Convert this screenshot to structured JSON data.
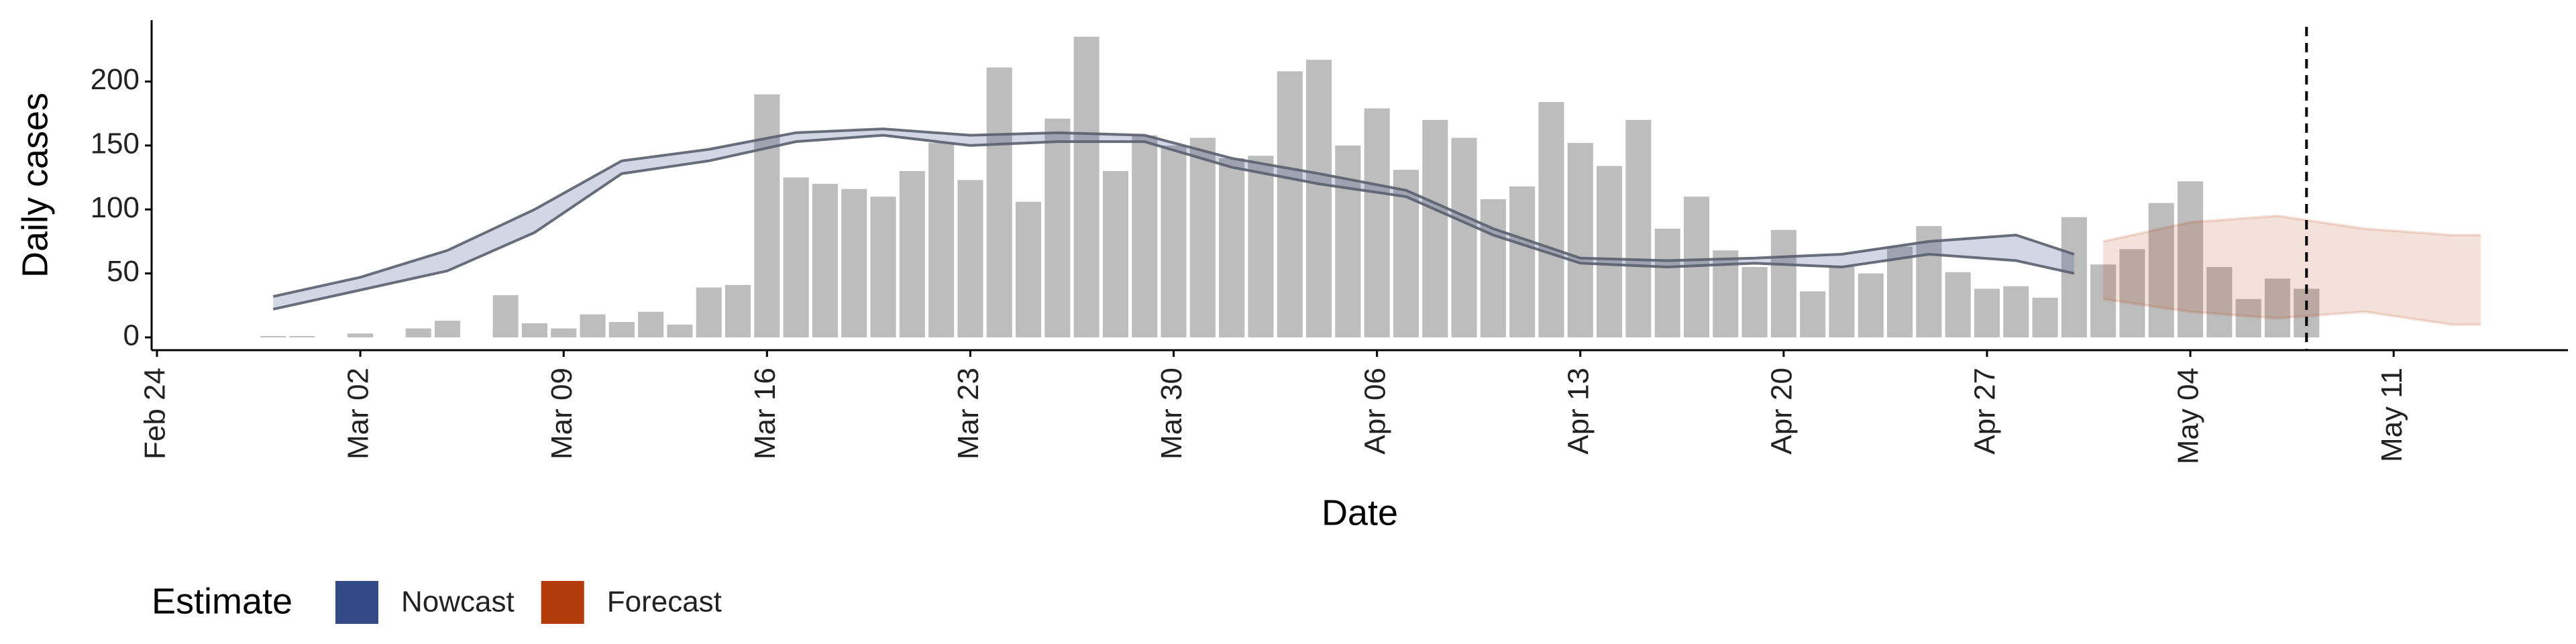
{
  "chart_data": {
    "type": "bar",
    "x_label": "Date",
    "y_label": "Daily cases",
    "legend_title": "Estimate",
    "color": "#bdbdbd",
    "x": [
      "Feb 28",
      "Feb 29",
      "Mar 01",
      "Mar 02",
      "Mar 03",
      "Mar 04",
      "Mar 05",
      "Mar 06",
      "Mar 07",
      "Mar 08",
      "Mar 09",
      "Mar 10",
      "Mar 11",
      "Mar 12",
      "Mar 13",
      "Mar 14",
      "Mar 15",
      "Mar 16",
      "Mar 17",
      "Mar 18",
      "Mar 19",
      "Mar 20",
      "Mar 21",
      "Mar 22",
      "Mar 23",
      "Mar 24",
      "Mar 25",
      "Mar 26",
      "Mar 27",
      "Mar 28",
      "Mar 29",
      "Mar 30",
      "Mar 31",
      "Apr 01",
      "Apr 02",
      "Apr 03",
      "Apr 04",
      "Apr 05",
      "Apr 06",
      "Apr 07",
      "Apr 08",
      "Apr 09",
      "Apr 10",
      "Apr 11",
      "Apr 12",
      "Apr 13",
      "Apr 14",
      "Apr 15",
      "Apr 16",
      "Apr 17",
      "Apr 18",
      "Apr 19",
      "Apr 20",
      "Apr 21",
      "Apr 22",
      "Apr 23",
      "Apr 24",
      "Apr 25",
      "Apr 26",
      "Apr 27",
      "Apr 28",
      "Apr 29",
      "Apr 30",
      "May 01",
      "May 02",
      "May 03",
      "May 04",
      "May 05",
      "May 06",
      "May 07",
      "May 08"
    ],
    "values": [
      1,
      1,
      0,
      3,
      0,
      7,
      13,
      0,
      33,
      11,
      7,
      18,
      12,
      20,
      10,
      39,
      41,
      190,
      125,
      120,
      116,
      110,
      130,
      152,
      123,
      211,
      106,
      171,
      235,
      130,
      158,
      150,
      156,
      140,
      142,
      208,
      217,
      150,
      179,
      131,
      170,
      156,
      108,
      118,
      184,
      152,
      134,
      170,
      85,
      110,
      68,
      55,
      84,
      36,
      56,
      50,
      71,
      87,
      51,
      38,
      40,
      31,
      94,
      57,
      69,
      105,
      122,
      55,
      30,
      46,
      38
    ],
    "series": [
      {
        "name": "Nowcast",
        "color": "#334a87",
        "x": [
          "Feb 28",
          "Mar 02",
          "Mar 05",
          "Mar 08",
          "Mar 11",
          "Mar 14",
          "Mar 17",
          "Mar 20",
          "Mar 23",
          "Mar 26",
          "Mar 29",
          "Apr 01",
          "Apr 04",
          "Apr 07",
          "Apr 10",
          "Apr 13",
          "Apr 16",
          "Apr 19",
          "Apr 22",
          "Apr 25",
          "Apr 28",
          "Apr 30"
        ],
        "upper": [
          32,
          47,
          68,
          100,
          138,
          147,
          160,
          163,
          158,
          160,
          158,
          140,
          128,
          115,
          85,
          62,
          60,
          62,
          65,
          75,
          80,
          65
        ],
        "lower": [
          22,
          37,
          52,
          82,
          128,
          138,
          153,
          158,
          150,
          153,
          153,
          133,
          120,
          110,
          80,
          58,
          55,
          58,
          55,
          65,
          60,
          50
        ]
      },
      {
        "name": "Forecast",
        "color": "#b33a0a",
        "x": [
          "May 01",
          "May 04",
          "May 07",
          "May 10",
          "May 13",
          "May 14"
        ],
        "upper": [
          75,
          90,
          95,
          85,
          80,
          80
        ],
        "lower": [
          30,
          20,
          15,
          20,
          10,
          10
        ]
      }
    ],
    "vline": "May 08",
    "xlim": [
      "Feb 24",
      "May 17"
    ],
    "xticks": [
      "Feb 24",
      "Mar 02",
      "Mar 09",
      "Mar 16",
      "Mar 23",
      "Mar 30",
      "Apr 06",
      "Apr 13",
      "Apr 20",
      "Apr 27",
      "May 04",
      "May 11"
    ],
    "ylim": [
      -10,
      248
    ],
    "yticks": [
      0,
      50,
      100,
      150,
      200
    ]
  }
}
